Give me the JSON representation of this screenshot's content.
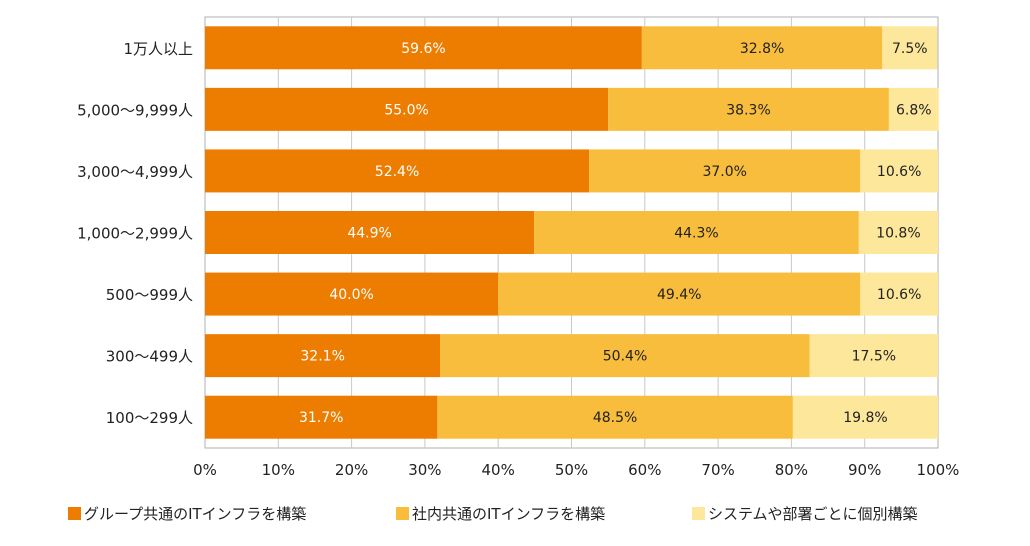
{
  "chart_data": {
    "type": "bar",
    "orientation": "horizontal",
    "stacked": true,
    "normalized": true,
    "categories": [
      "1万人以上",
      "5,000〜9,999人",
      "3,000〜4,999人",
      "1,000〜2,999人",
      "500〜999人",
      "300〜499人",
      "100〜299人"
    ],
    "series": [
      {
        "name": "グループ共通のITインフラを構築",
        "color": "#ed7d00",
        "label_color": "#ffffff",
        "values": [
          59.6,
          55.0,
          52.4,
          44.9,
          40.0,
          32.1,
          31.7
        ]
      },
      {
        "name": "社内共通のITインフラを構築",
        "color": "#f8bd3c",
        "label_color": "#222222",
        "values": [
          32.8,
          38.3,
          37.0,
          44.3,
          49.4,
          50.4,
          48.5
        ]
      },
      {
        "name": "システムや部署ごとに個別構築",
        "color": "#fde79a",
        "label_color": "#222222",
        "values": [
          7.5,
          6.8,
          10.6,
          10.8,
          10.6,
          17.5,
          19.8
        ]
      }
    ],
    "data_labels": [
      [
        "59.6%",
        "32.8%",
        "7.5%"
      ],
      [
        "55.0%",
        "38.3%",
        "6.8%"
      ],
      [
        "52.4%",
        "37.0%",
        "10.6%"
      ],
      [
        "44.9%",
        "44.3%",
        "10.8%"
      ],
      [
        "40.0%",
        "49.4%",
        "10.6%"
      ],
      [
        "32.1%",
        "50.4%",
        "17.5%"
      ],
      [
        "31.7%",
        "48.5%",
        "19.8%"
      ]
    ],
    "x_ticks": [
      "0%",
      "10%",
      "20%",
      "30%",
      "40%",
      "50%",
      "60%",
      "70%",
      "80%",
      "90%",
      "100%"
    ],
    "xlim": [
      0,
      100
    ],
    "grid": "vertical",
    "legend_position": "bottom",
    "title": "",
    "xlabel": "",
    "ylabel": ""
  }
}
